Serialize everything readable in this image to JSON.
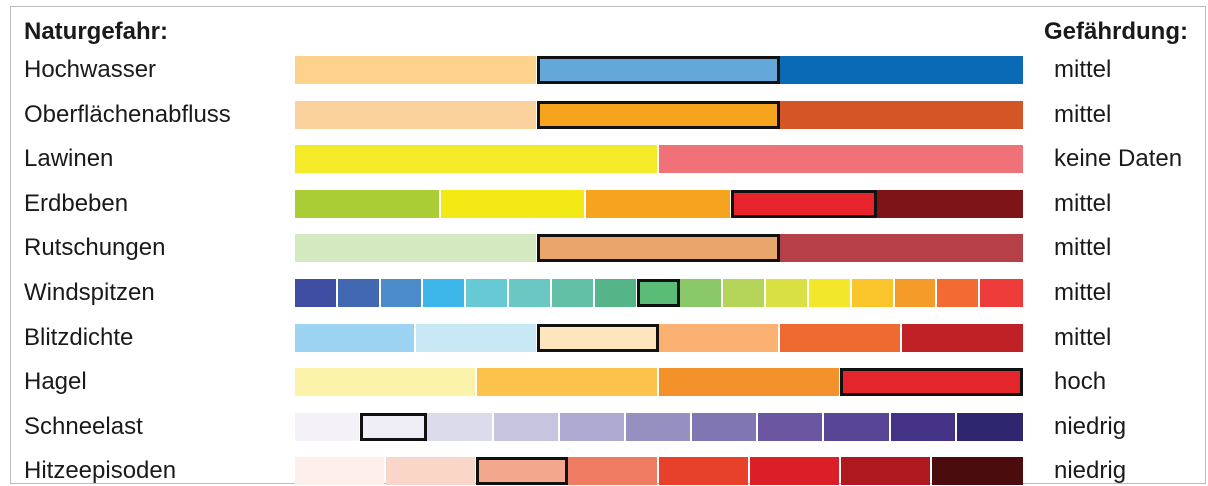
{
  "headers": {
    "hazard": "Naturgefahr:",
    "rating": "Gefährdung:"
  },
  "chart_data": {
    "type": "table",
    "rows": [
      {
        "name": "Hochwasser",
        "level": "mittel",
        "colors": [
          "#fdd28a",
          "#63a8d8",
          "#0a6ab6"
        ],
        "selected": 1
      },
      {
        "name": "Oberflächenabfluss",
        "level": "mittel",
        "colors": [
          "#fbd29e",
          "#f6a31d",
          "#d45627"
        ],
        "selected": 1
      },
      {
        "name": "Lawinen",
        "level": "keine Daten",
        "colors": [
          "#f4ea29",
          "#f07177"
        ],
        "selected": null
      },
      {
        "name": "Erdbeben",
        "level": "mittel",
        "colors": [
          "#aacd36",
          "#f3e915",
          "#f6a31f",
          "#e7242c",
          "#7d1417"
        ],
        "selected": 3
      },
      {
        "name": "Rutschungen",
        "level": "mittel",
        "colors": [
          "#d3e9bf",
          "#e9a66c",
          "#b64047"
        ],
        "selected": 1
      },
      {
        "name": "Windspitzen",
        "level": "mittel",
        "colors": [
          "#3f4ea2",
          "#4268b1",
          "#4d8ccb",
          "#3db7e9",
          "#66c9d4",
          "#6bc7c1",
          "#62c0a6",
          "#55b589",
          "#5bbc78",
          "#8ac86a",
          "#b5d55a",
          "#d8e043",
          "#f2e72a",
          "#f9c52a",
          "#f59b2a",
          "#f26b33",
          "#ee3c3b"
        ],
        "selected": 8
      },
      {
        "name": "Blitzdichte",
        "level": "mittel",
        "colors": [
          "#9dd3f2",
          "#c9e8f5",
          "#fde5bd",
          "#fbb172",
          "#ef6a31",
          "#c02126"
        ],
        "selected": 2
      },
      {
        "name": "Hagel",
        "level": "hoch",
        "colors": [
          "#faf3a9",
          "#fbc34b",
          "#f3922b",
          "#e3262b"
        ],
        "selected": 3
      },
      {
        "name": "Schneelast",
        "level": "niedrig",
        "colors": [
          "#f5f1f8",
          "#efedf5",
          "#dcdbeb",
          "#c7c4e0",
          "#ada9d0",
          "#9690c1",
          "#7f76b2",
          "#6b56a0",
          "#584596",
          "#443284",
          "#2f2670"
        ],
        "selected": 1
      },
      {
        "name": "Hitzeepisoden",
        "level": "niedrig",
        "colors": [
          "#fdf0ec",
          "#f9d6c8",
          "#f3a88d",
          "#ef7c60",
          "#e7412c",
          "#dc1f26",
          "#b0181f",
          "#4b0c0e"
        ],
        "selected": 2
      }
    ]
  }
}
